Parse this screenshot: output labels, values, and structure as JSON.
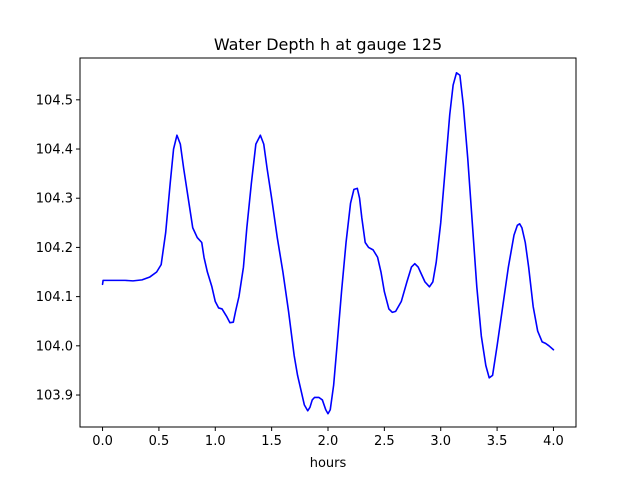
{
  "chart_data": {
    "type": "line",
    "title": "Water Depth h at gauge 125",
    "xlabel": "hours",
    "ylabel": "",
    "xlim": [
      -0.2,
      4.2
    ],
    "ylim": [
      103.835,
      104.585
    ],
    "xticks": [
      0.0,
      0.5,
      1.0,
      1.5,
      2.0,
      2.5,
      3.0,
      3.5,
      4.0
    ],
    "xtick_labels": [
      "0.0",
      "0.5",
      "1.0",
      "1.5",
      "2.0",
      "2.5",
      "3.0",
      "3.5",
      "4.0"
    ],
    "yticks": [
      103.9,
      104.0,
      104.1,
      104.2,
      104.3,
      104.4,
      104.5
    ],
    "ytick_labels": [
      "103.9",
      "104.0",
      "104.1",
      "104.2",
      "104.3",
      "104.4",
      "104.5"
    ],
    "grid": false,
    "series": [
      {
        "color": "#0000ff",
        "x": [
          0.0,
          0.005,
          0.1,
          0.2,
          0.27,
          0.35,
          0.42,
          0.48,
          0.52,
          0.56,
          0.6,
          0.63,
          0.66,
          0.69,
          0.72,
          0.76,
          0.8,
          0.84,
          0.88,
          0.9,
          0.93,
          0.97,
          1.0,
          1.03,
          1.06,
          1.1,
          1.13,
          1.16,
          1.18,
          1.21,
          1.25,
          1.28,
          1.32,
          1.36,
          1.4,
          1.43,
          1.46,
          1.5,
          1.55,
          1.6,
          1.65,
          1.7,
          1.73,
          1.76,
          1.79,
          1.82,
          1.84,
          1.86,
          1.88,
          1.92,
          1.95,
          1.98,
          2.0,
          2.02,
          2.05,
          2.08,
          2.12,
          2.16,
          2.2,
          2.23,
          2.26,
          2.28,
          2.3,
          2.33,
          2.36,
          2.4,
          2.44,
          2.47,
          2.5,
          2.54,
          2.57,
          2.6,
          2.65,
          2.7,
          2.74,
          2.77,
          2.8,
          2.83,
          2.86,
          2.9,
          2.93,
          2.96,
          3.0,
          3.04,
          3.08,
          3.11,
          3.14,
          3.17,
          3.2,
          3.24,
          3.28,
          3.32,
          3.36,
          3.4,
          3.43,
          3.46,
          3.5,
          3.55,
          3.6,
          3.65,
          3.68,
          3.7,
          3.72,
          3.75,
          3.78,
          3.82,
          3.86,
          3.9,
          3.93,
          3.96,
          4.0
        ],
        "y": [
          104.125,
          104.133,
          104.133,
          104.133,
          104.132,
          104.134,
          104.14,
          104.15,
          104.165,
          104.23,
          104.33,
          104.4,
          104.428,
          104.41,
          104.36,
          104.3,
          104.24,
          104.22,
          104.21,
          104.18,
          104.15,
          104.12,
          104.09,
          104.077,
          104.075,
          104.06,
          104.047,
          104.048,
          104.07,
          104.1,
          104.16,
          104.24,
          104.33,
          104.41,
          104.428,
          104.41,
          104.36,
          104.3,
          104.22,
          104.15,
          104.07,
          103.98,
          103.94,
          103.91,
          103.88,
          103.868,
          103.875,
          103.89,
          103.895,
          103.895,
          103.89,
          103.87,
          103.862,
          103.87,
          103.92,
          104.0,
          104.11,
          104.21,
          104.29,
          104.318,
          104.32,
          104.3,
          104.26,
          104.21,
          104.2,
          104.195,
          104.18,
          104.15,
          104.11,
          104.075,
          104.068,
          104.07,
          104.09,
          104.13,
          104.16,
          104.167,
          104.16,
          104.145,
          104.13,
          104.12,
          104.13,
          104.17,
          104.25,
          104.36,
          104.47,
          104.53,
          104.555,
          104.55,
          104.49,
          104.38,
          104.25,
          104.12,
          104.02,
          103.96,
          103.935,
          103.94,
          104.0,
          104.08,
          104.16,
          104.225,
          104.245,
          104.248,
          104.24,
          104.21,
          104.16,
          104.08,
          104.03,
          104.008,
          104.005,
          104.0,
          103.992
        ]
      }
    ]
  }
}
